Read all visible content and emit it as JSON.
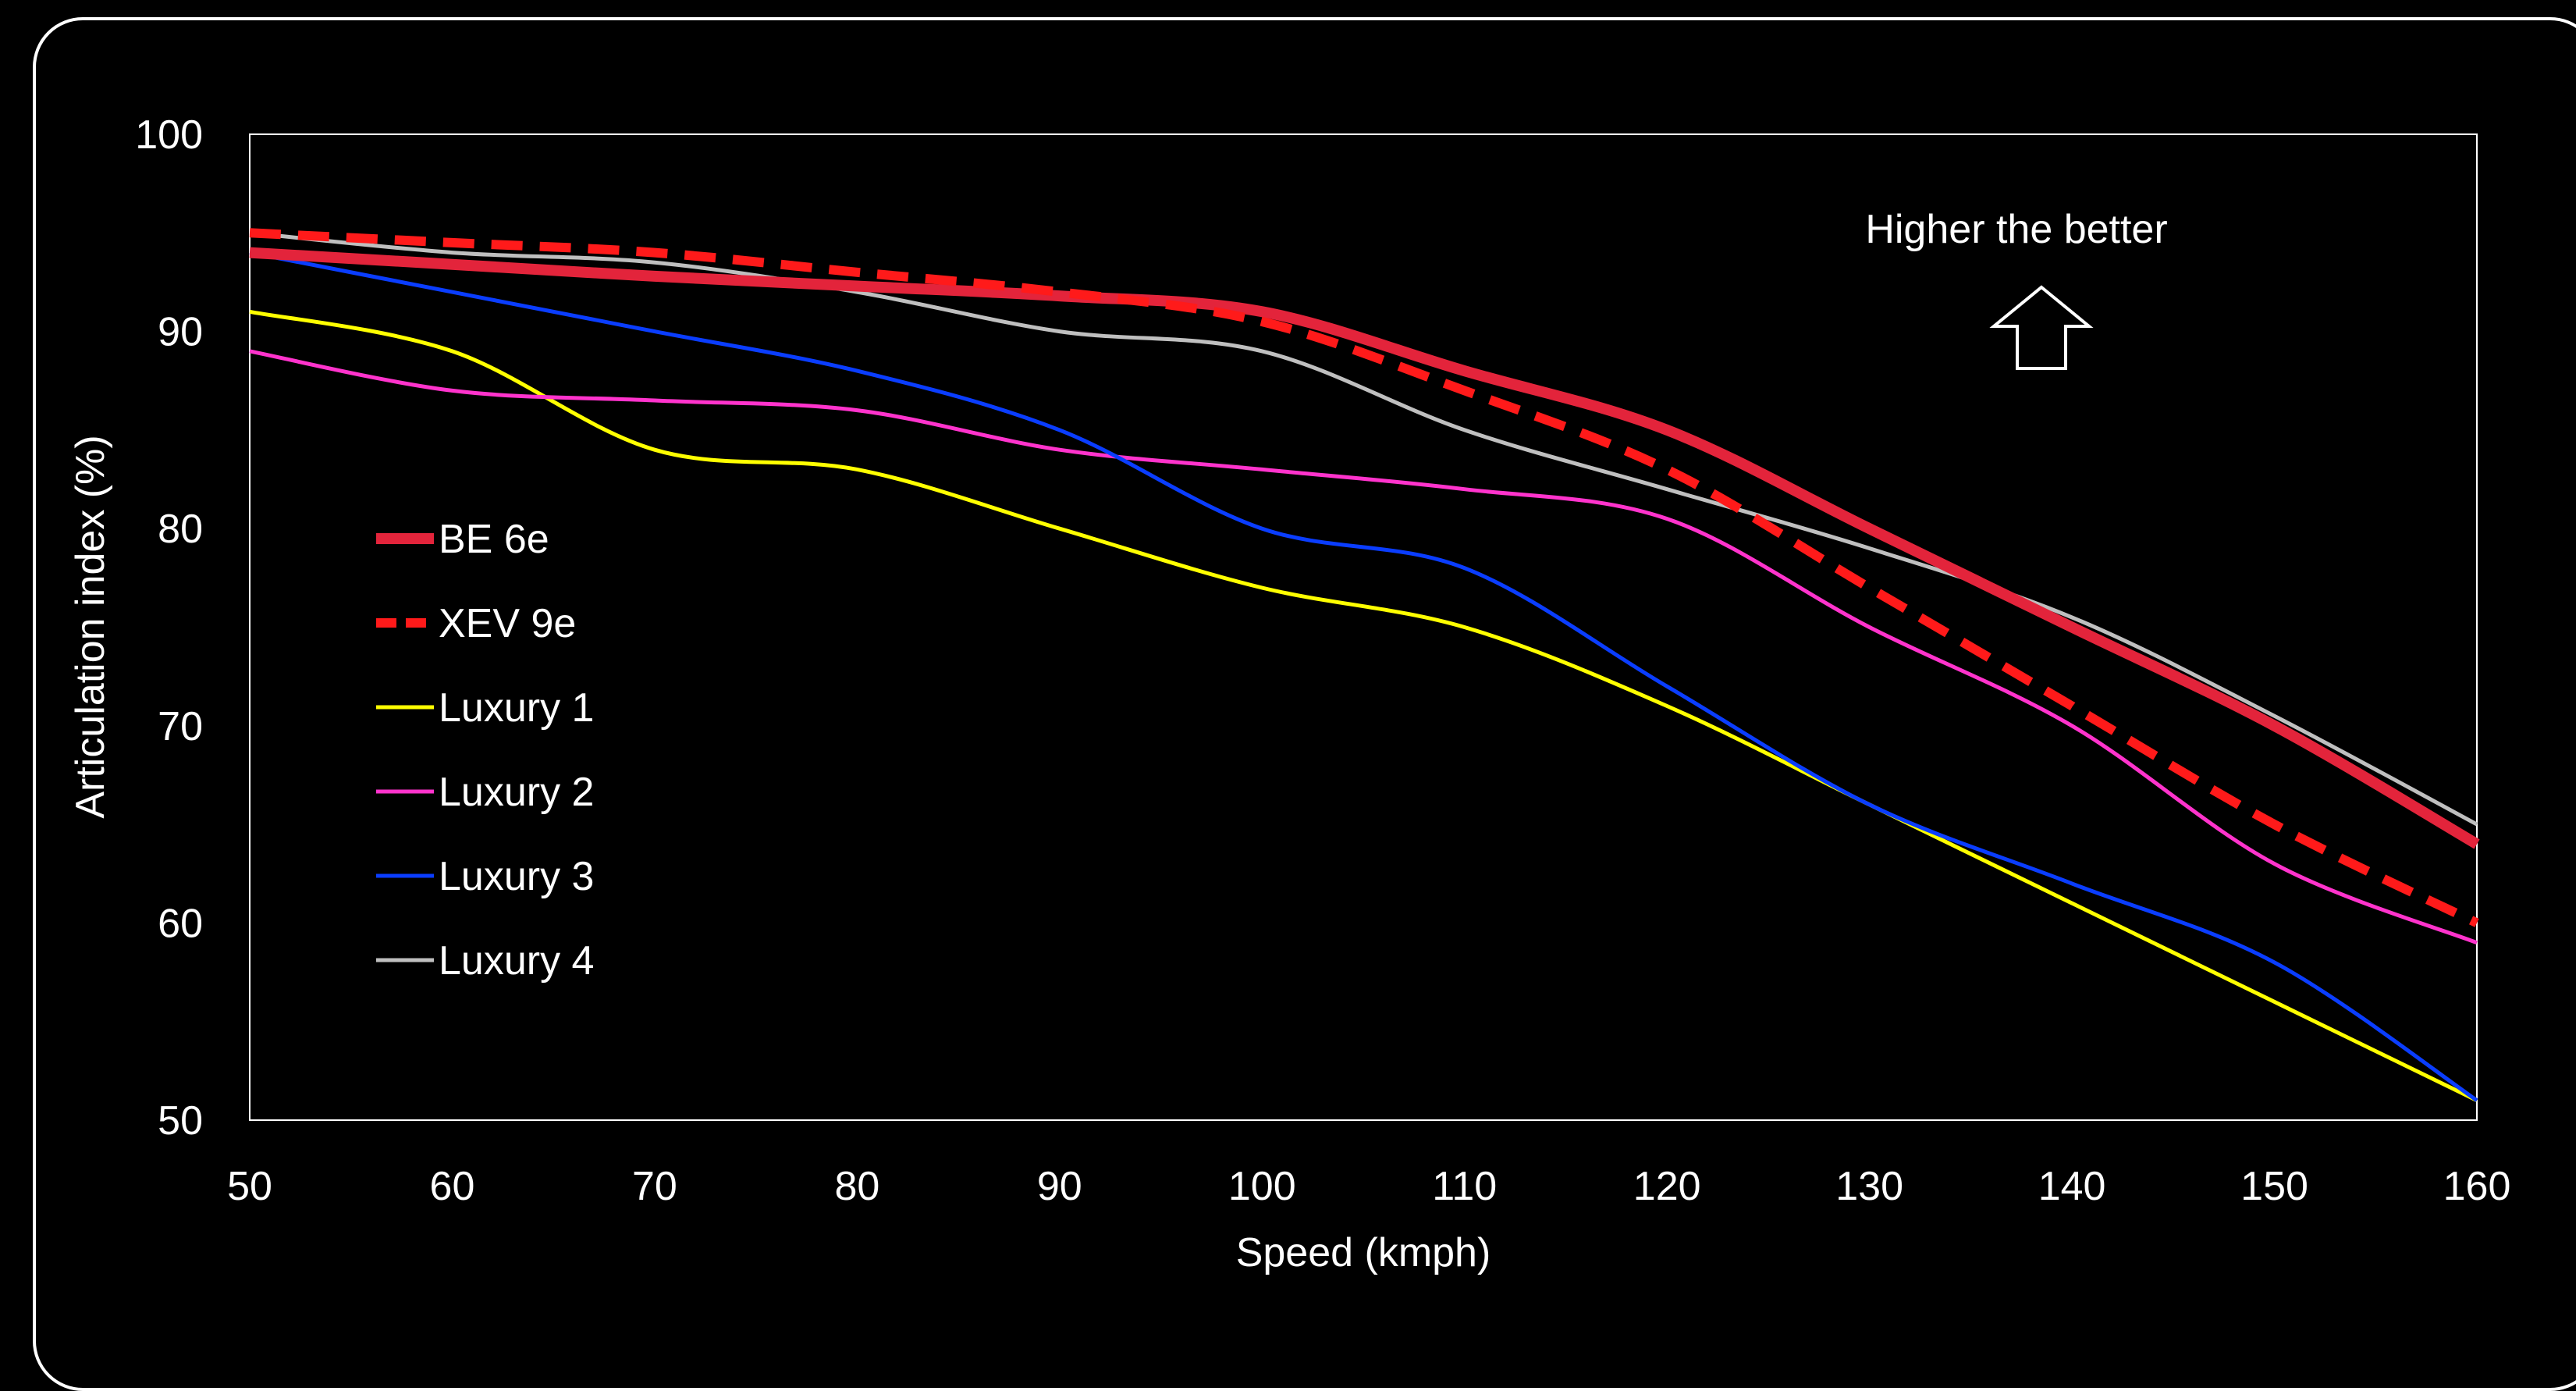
{
  "chart_data": {
    "type": "line",
    "xlabel": "Speed (kmph)",
    "ylabel": "Articulation index (%)",
    "xlim": [
      50,
      160
    ],
    "ylim": [
      50,
      100
    ],
    "x_ticks": [
      50,
      60,
      70,
      80,
      90,
      100,
      110,
      120,
      130,
      140,
      150,
      160
    ],
    "y_ticks": [
      50,
      60,
      70,
      80,
      90,
      100
    ],
    "grid": false,
    "legend_position": "left",
    "annotation": {
      "text": "Higher the better",
      "arrow": "up"
    },
    "series": [
      {
        "name": "BE 6e",
        "color": "#e3243b",
        "style": "solid-thick",
        "x": [
          50,
          60,
          70,
          80,
          90,
          100,
          110,
          120,
          130,
          140,
          150,
          160
        ],
        "y": [
          94,
          93.4,
          92.8,
          92.3,
          91.8,
          91,
          88,
          85,
          80,
          75,
          70,
          64
        ]
      },
      {
        "name": "XEV 9e",
        "color": "#ff1a1a",
        "style": "dashed",
        "x": [
          50,
          60,
          70,
          80,
          90,
          100,
          110,
          120,
          130,
          140,
          150,
          160
        ],
        "y": [
          95,
          94.5,
          94,
          93,
          92,
          90.5,
          87,
          83,
          77,
          71,
          65,
          60
        ]
      },
      {
        "name": "Luxury 1",
        "color": "#ffff00",
        "style": "solid",
        "x": [
          50,
          60,
          70,
          80,
          90,
          100,
          110,
          120,
          130,
          140,
          150,
          160
        ],
        "y": [
          91,
          89,
          84,
          83,
          80,
          77,
          75,
          71,
          66,
          61,
          56,
          51
        ]
      },
      {
        "name": "Luxury 2",
        "color": "#ff33cc",
        "style": "solid",
        "x": [
          50,
          60,
          70,
          80,
          90,
          100,
          110,
          120,
          130,
          140,
          150,
          160
        ],
        "y": [
          89,
          87,
          86.5,
          86,
          84,
          83,
          82,
          80.5,
          75,
          70,
          63,
          59
        ]
      },
      {
        "name": "Luxury 3",
        "color": "#0a3dff",
        "style": "solid",
        "x": [
          50,
          60,
          70,
          80,
          90,
          100,
          110,
          120,
          130,
          140,
          150,
          160
        ],
        "y": [
          94,
          92,
          90,
          88,
          85,
          80,
          78,
          72,
          66,
          62,
          58,
          51
        ]
      },
      {
        "name": "Luxury 4",
        "color": "#bfbfbf",
        "style": "solid",
        "x": [
          50,
          60,
          70,
          80,
          90,
          100,
          110,
          120,
          130,
          140,
          150,
          160
        ],
        "y": [
          95,
          94,
          93.5,
          92,
          90,
          89,
          85,
          82,
          79,
          75.5,
          70.5,
          65
        ]
      }
    ]
  }
}
